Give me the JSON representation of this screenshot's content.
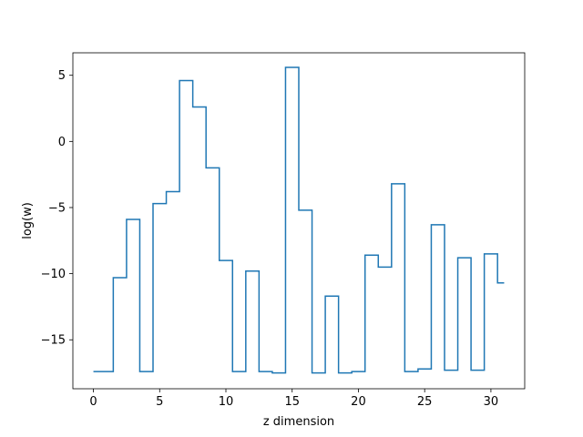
{
  "chart_data": {
    "type": "line",
    "drawstyle": "steps-mid",
    "xlabel": "z dimension",
    "ylabel": "log(w)",
    "xlim": [
      -1.55,
      32.55
    ],
    "ylim": [
      -18.7,
      6.7
    ],
    "xticks": [
      0,
      5,
      10,
      15,
      20,
      25,
      30
    ],
    "yticks": [
      -15,
      -10,
      -5,
      0,
      5
    ],
    "grid": false,
    "series": [
      {
        "color": "#1f77b4",
        "x": [
          0,
          1,
          2,
          3,
          4,
          5,
          6,
          7,
          8,
          9,
          10,
          11,
          12,
          13,
          14,
          15,
          16,
          17,
          18,
          19,
          20,
          21,
          22,
          23,
          24,
          25,
          26,
          27,
          28,
          29,
          30,
          31
        ],
        "y": [
          -17.4,
          -17.4,
          -10.3,
          -5.9,
          -17.4,
          -4.7,
          -3.8,
          4.6,
          2.6,
          -2.0,
          -9.0,
          -17.4,
          -9.8,
          -17.4,
          -17.5,
          5.6,
          -5.2,
          -17.5,
          -11.7,
          -17.5,
          -17.4,
          -8.6,
          -9.5,
          -3.2,
          -17.4,
          -17.2,
          -6.3,
          -17.3,
          -8.8,
          -17.3,
          -8.5,
          -10.7
        ]
      }
    ]
  }
}
